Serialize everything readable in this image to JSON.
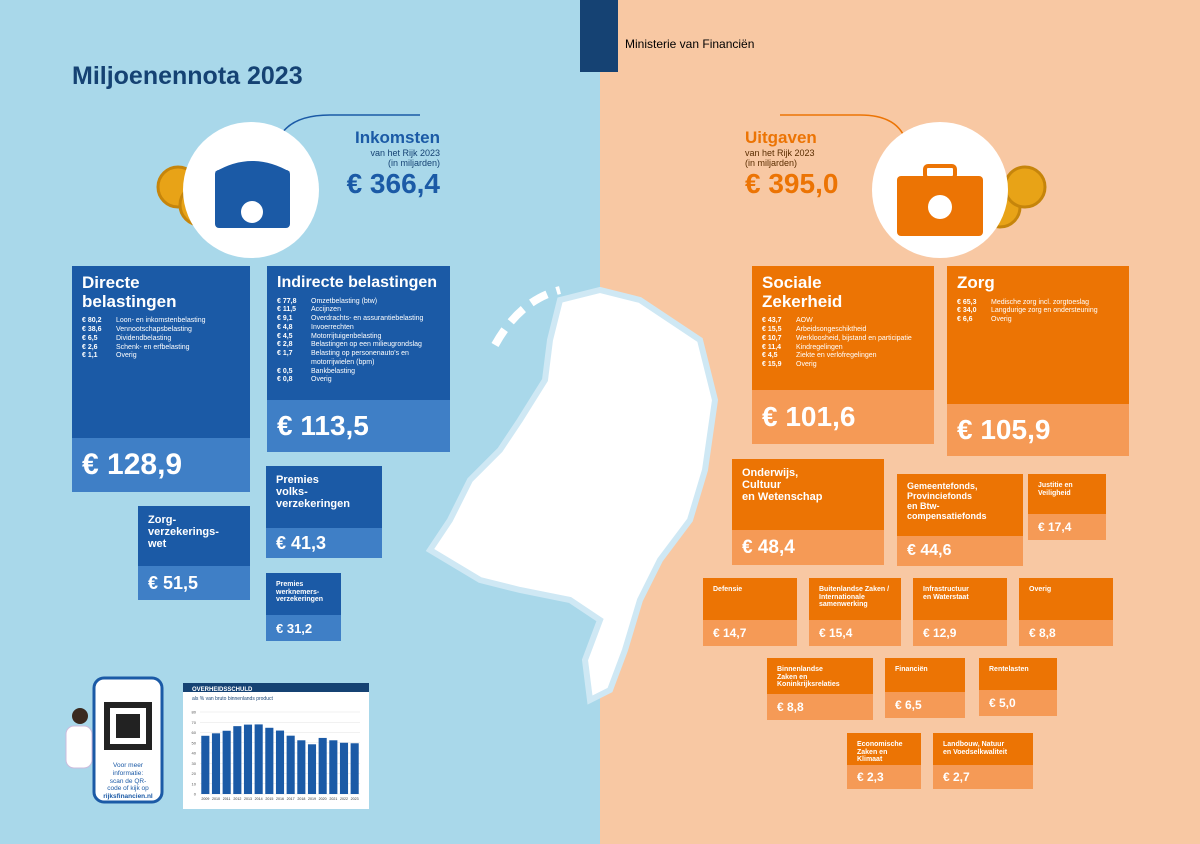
{
  "header": {
    "title": "Miljoenennota 2023",
    "ministry": "Ministerie van Financiën"
  },
  "income": {
    "title": "Inkomsten",
    "subtitle": [
      "van het Rijk 2023",
      "(in miljarden)"
    ],
    "total": "€ 366,4",
    "blocks": [
      {
        "title": "Directe\nbelastingen",
        "items": [
          {
            "amount": "€ 80,2",
            "label": "Loon- en inkomstenbelasting"
          },
          {
            "amount": "€ 38,6",
            "label": "Vennootschapsbelasting"
          },
          {
            "amount": "€ 6,5",
            "label": "Dividendbelasting"
          },
          {
            "amount": "€ 2,6",
            "label": "Schenk- en erfbelasting"
          },
          {
            "amount": "€ 1,1",
            "label": "Overig"
          }
        ],
        "total": "€ 128,9"
      },
      {
        "title": "Indirecte belastingen",
        "items": [
          {
            "amount": "€ 77,8",
            "label": "Omzetbelasting (btw)"
          },
          {
            "amount": "€ 11,5",
            "label": "Accijnzen"
          },
          {
            "amount": "€ 9,1",
            "label": "Overdrachts- en assurantiebelasting"
          },
          {
            "amount": "€ 4,8",
            "label": "Invoerrechten"
          },
          {
            "amount": "€ 4,5",
            "label": "Motorrijtuigenbelasting"
          },
          {
            "amount": "€ 2,8",
            "label": "Belastingen op een milieugrondslag"
          },
          {
            "amount": "€ 1,7",
            "label": "Belasting op personenauto's en motorrijwielen (bpm)"
          },
          {
            "amount": "€ 0,5",
            "label": "Bankbelasting"
          },
          {
            "amount": "€ 0,8",
            "label": "Overig"
          }
        ],
        "total": "€ 113,5"
      },
      {
        "title": "Premies\nvolks-\nverzekeringen",
        "total": "€ 41,3"
      },
      {
        "title": "Zorg-\nverzekerings-\nwet",
        "total": "€ 51,5"
      },
      {
        "title": "Premies\nwerknemers-\nverzekeringen",
        "total": "€ 31,2"
      }
    ]
  },
  "expenses": {
    "title": "Uitgaven",
    "subtitle": [
      "van het Rijk 2023",
      "(in miljarden)"
    ],
    "total": "€ 395,0",
    "blocks": [
      {
        "title": "Sociale\nZekerheid",
        "items": [
          {
            "amount": "€ 43,7",
            "label": "AOW"
          },
          {
            "amount": "€ 15,5",
            "label": "Arbeidsongeschiktheid"
          },
          {
            "amount": "€ 10,7",
            "label": "Werkloosheid, bijstand en participatie"
          },
          {
            "amount": "€ 11,4",
            "label": "Kindregelingen"
          },
          {
            "amount": "€ 4,5",
            "label": "Ziekte en verlofregelingen"
          },
          {
            "amount": "€ 15,9",
            "label": "Overig"
          }
        ],
        "total": "€ 101,6"
      },
      {
        "title": "Zorg",
        "items": [
          {
            "amount": "€ 65,3",
            "label": "Medische zorg incl. zorgtoeslag"
          },
          {
            "amount": "€ 34,0",
            "label": "Langdurige zorg en ondersteuning"
          },
          {
            "amount": "€ 6,6",
            "label": "Overig"
          }
        ],
        "total": "€ 105,9"
      },
      {
        "title": "Onderwijs,\nCultuur\nen Wetenschap",
        "total": "€ 48,4"
      },
      {
        "title": "Gemeentefonds,\nProvinciefonds\nen Btw-\ncompensatiefonds",
        "total": "€ 44,6"
      },
      {
        "title": "Justitie en\nVeiligheid",
        "total": "€ 17,4"
      },
      {
        "title": "Defensie",
        "total": "€ 14,7"
      },
      {
        "title": "Buitenlandse Zaken /\nInternationale\nsamenwerking",
        "total": "€ 15,4"
      },
      {
        "title": "Infrastructuur\nen Waterstaat",
        "total": "€ 12,9"
      },
      {
        "title": "Overig",
        "total": "€ 8,8"
      },
      {
        "title": "Binnenlandse\nZaken en\nKoninkrijksrelaties",
        "total": "€ 8,8"
      },
      {
        "title": "Financiën",
        "total": "€ 6,5"
      },
      {
        "title": "Rentelasten",
        "total": "€ 5,0"
      },
      {
        "title": "Economische\nZaken en\nKlimaat",
        "total": "€ 2,3"
      },
      {
        "title": "Landbouw, Natuur\nen Voedselkwaliteit",
        "total": "€ 2,7"
      }
    ]
  },
  "more_info": {
    "lines": [
      "Voor meer",
      "informatie:",
      "scan de QR-",
      "code of kijk op",
      "rijksfinancien.nl"
    ]
  },
  "chart_data": {
    "type": "bar",
    "title": "OVERHEIDSSCHULD",
    "subtitle": "als % van bruto binnenlands product",
    "categories": [
      "2009",
      "2010",
      "2011",
      "2012",
      "2013",
      "2014",
      "2015",
      "2016",
      "2017",
      "2018",
      "2019",
      "2020",
      "2021",
      "2022",
      "2023"
    ],
    "values": [
      56.8,
      59.2,
      61.7,
      66.2,
      67.7,
      67.9,
      64.6,
      61.9,
      56.9,
      52.4,
      48.5,
      54.7,
      52.4,
      50.0,
      49.5
    ],
    "color": "#1b5aa6",
    "ylim": [
      0,
      80
    ],
    "yticks": [
      0,
      10,
      20,
      30,
      40,
      50,
      60,
      70,
      80
    ]
  }
}
